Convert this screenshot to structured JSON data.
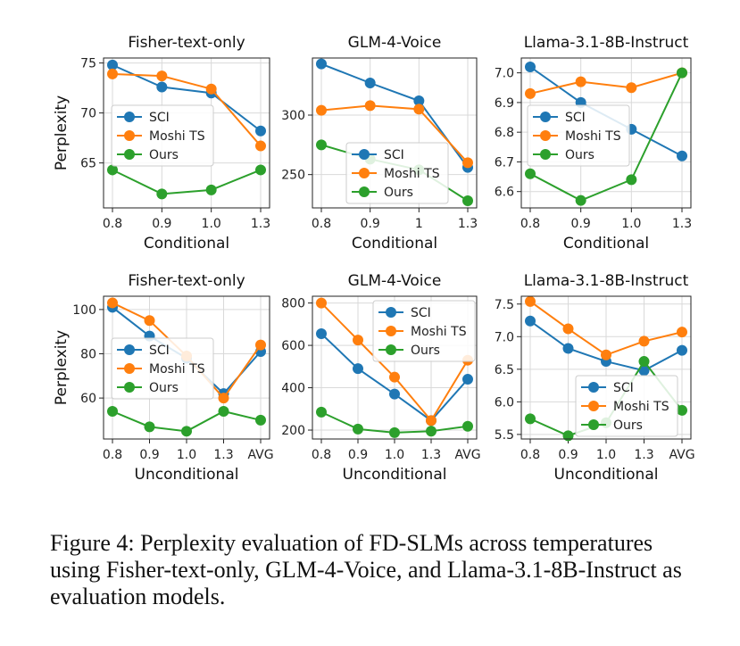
{
  "caption": "Figure 4: Perplexity evaluation of FD-SLMs across temperatures using Fisher-text-only, GLM-4-Voice, and Llama-3.1-8B-Instruct as evaluation models.",
  "colors": {
    "SCI": "#1f77b4",
    "Moshi TS": "#ff7f0e",
    "Ours": "#2ca02c"
  },
  "chart_data": [
    {
      "type": "line",
      "title": "Fisher-text-only",
      "ylabel": "Perplexity",
      "xlabel": "Conditional",
      "categories": [
        "0.8",
        "0.9",
        "1.0",
        "1.3"
      ],
      "ylim": [
        60.5,
        75.5
      ],
      "yticks": [
        65,
        70,
        75
      ],
      "grid": true,
      "legend": "center-left",
      "series": [
        {
          "name": "SCI",
          "values": [
            74.8,
            72.6,
            72.0,
            68.2
          ]
        },
        {
          "name": "Moshi TS",
          "values": [
            73.9,
            73.7,
            72.4,
            66.7
          ]
        },
        {
          "name": "Ours",
          "values": [
            64.3,
            61.9,
            62.3,
            64.3
          ]
        }
      ]
    },
    {
      "type": "line",
      "title": "GLM-4-Voice",
      "ylabel": "",
      "xlabel": "Conditional",
      "categories": [
        "0.8",
        "0.9",
        "1",
        "1.3"
      ],
      "ylim": [
        222,
        348
      ],
      "yticks": [
        250,
        300
      ],
      "grid": true,
      "legend": "center",
      "series": [
        {
          "name": "SCI",
          "values": [
            343,
            327,
            312,
            256
          ]
        },
        {
          "name": "Moshi TS",
          "values": [
            304,
            308,
            305,
            260
          ]
        },
        {
          "name": "Ours",
          "values": [
            275,
            263,
            254,
            228
          ]
        }
      ]
    },
    {
      "type": "line",
      "title": "Llama-3.1-8B-Instruct",
      "ylabel": "",
      "xlabel": "Conditional",
      "categories": [
        "0.8",
        "0.9",
        "1.0",
        "1.3"
      ],
      "ylim": [
        6.545,
        7.05
      ],
      "yticks": [
        6.6,
        6.7,
        6.8,
        6.9,
        7.0
      ],
      "grid": true,
      "legend": "center-left",
      "series": [
        {
          "name": "SCI",
          "values": [
            7.02,
            6.9,
            6.81,
            6.72
          ]
        },
        {
          "name": "Moshi TS",
          "values": [
            6.93,
            6.97,
            6.95,
            7.0
          ]
        },
        {
          "name": "Ours",
          "values": [
            6.66,
            6.57,
            6.64,
            7.0
          ]
        }
      ]
    },
    {
      "type": "line",
      "title": "Fisher-text-only",
      "ylabel": "Perplexity",
      "xlabel": "Unconditional",
      "categories": [
        "0.8",
        "0.9",
        "1.0",
        "1.3",
        "AVG"
      ],
      "ylim": [
        41.5,
        106
      ],
      "yticks": [
        60,
        80,
        100
      ],
      "grid": true,
      "legend": "center-left",
      "series": [
        {
          "name": "SCI",
          "values": [
            101,
            88,
            78,
            62,
            81
          ]
        },
        {
          "name": "Moshi TS",
          "values": [
            103,
            95,
            79,
            60,
            84
          ]
        },
        {
          "name": "Ours",
          "values": [
            54,
            47,
            45,
            54,
            50
          ]
        }
      ]
    },
    {
      "type": "line",
      "title": "GLM-4-Voice",
      "ylabel": "",
      "xlabel": "Unconditional",
      "categories": [
        "0.8",
        "0.9",
        "1.0",
        "1.3",
        "AVG"
      ],
      "ylim": [
        158,
        832
      ],
      "yticks": [
        200,
        400,
        600,
        800
      ],
      "grid": true,
      "legend": "upper-right",
      "series": [
        {
          "name": "SCI",
          "values": [
            655,
            490,
            370,
            245,
            440
          ]
        },
        {
          "name": "Moshi TS",
          "values": [
            800,
            625,
            450,
            245,
            530
          ]
        },
        {
          "name": "Ours",
          "values": [
            285,
            205,
            188,
            195,
            218
          ]
        }
      ]
    },
    {
      "type": "line",
      "title": "Llama-3.1-8B-Instruct",
      "ylabel": "",
      "xlabel": "Unconditional",
      "categories": [
        "0.8",
        "0.9",
        "1.0",
        "1.3",
        "AVG"
      ],
      "ylim": [
        5.43,
        7.62
      ],
      "yticks": [
        5.5,
        6.0,
        6.5,
        7.0,
        7.5
      ],
      "grid": true,
      "legend": "lower-right",
      "series": [
        {
          "name": "SCI",
          "values": [
            7.24,
            6.82,
            6.62,
            6.48,
            6.79
          ]
        },
        {
          "name": "Moshi TS",
          "values": [
            7.54,
            7.12,
            6.72,
            6.93,
            7.07
          ]
        },
        {
          "name": "Ours",
          "values": [
            5.74,
            5.48,
            5.68,
            6.62,
            5.87
          ]
        }
      ]
    }
  ]
}
